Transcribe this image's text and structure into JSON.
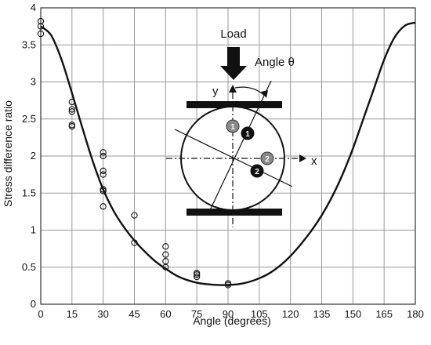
{
  "chart_data": {
    "type": "scatter",
    "title": "",
    "xlabel": "Angle (degrees)",
    "ylabel": "Stress difference ratio",
    "xlim": [
      0,
      180
    ],
    "ylim": [
      0,
      4
    ],
    "xticks": [
      0,
      15,
      30,
      45,
      60,
      75,
      90,
      105,
      120,
      135,
      150,
      165,
      180
    ],
    "yticks": [
      0,
      0.5,
      1,
      1.5,
      2,
      2.5,
      3,
      3.5,
      4
    ],
    "grid": true,
    "series": [
      {
        "kind": "curve",
        "style": "solid black line",
        "x": [
          0,
          5,
          10,
          15,
          20,
          25,
          30,
          35,
          40,
          45,
          50,
          55,
          60,
          65,
          70,
          75,
          80,
          85,
          90,
          95,
          100,
          105,
          110,
          115,
          120,
          125,
          130,
          135,
          140,
          145,
          150,
          155,
          160,
          165,
          170,
          175,
          180
        ],
        "y": [
          3.75,
          3.63,
          3.3,
          2.85,
          2.38,
          1.93,
          1.55,
          1.26,
          1.04,
          0.86,
          0.71,
          0.58,
          0.48,
          0.39,
          0.33,
          0.29,
          0.27,
          0.26,
          0.26,
          0.27,
          0.3,
          0.35,
          0.42,
          0.52,
          0.65,
          0.81,
          0.99,
          1.2,
          1.45,
          1.75,
          2.1,
          2.5,
          2.9,
          3.3,
          3.6,
          3.76,
          3.8
        ]
      },
      {
        "kind": "points",
        "style": "open circles",
        "x": [
          0,
          0,
          0,
          15,
          15,
          15,
          15,
          15,
          30,
          30,
          30,
          30,
          30,
          30,
          30,
          45,
          45,
          60,
          60,
          60,
          60,
          75,
          75,
          75,
          90,
          90
        ],
        "y": [
          3.82,
          3.75,
          3.65,
          2.73,
          2.63,
          2.6,
          2.42,
          2.4,
          2.05,
          2.0,
          1.8,
          1.75,
          1.55,
          1.53,
          1.32,
          1.2,
          0.83,
          0.78,
          0.67,
          0.58,
          0.5,
          0.42,
          0.4,
          0.37,
          0.28,
          0.26
        ]
      }
    ],
    "inset": {
      "load_label": "Load",
      "angle_label": "Angle  θ",
      "x_axis_label": "x",
      "y_axis_label": "y",
      "markers": [
        "1",
        "1",
        "2",
        "2"
      ]
    }
  }
}
